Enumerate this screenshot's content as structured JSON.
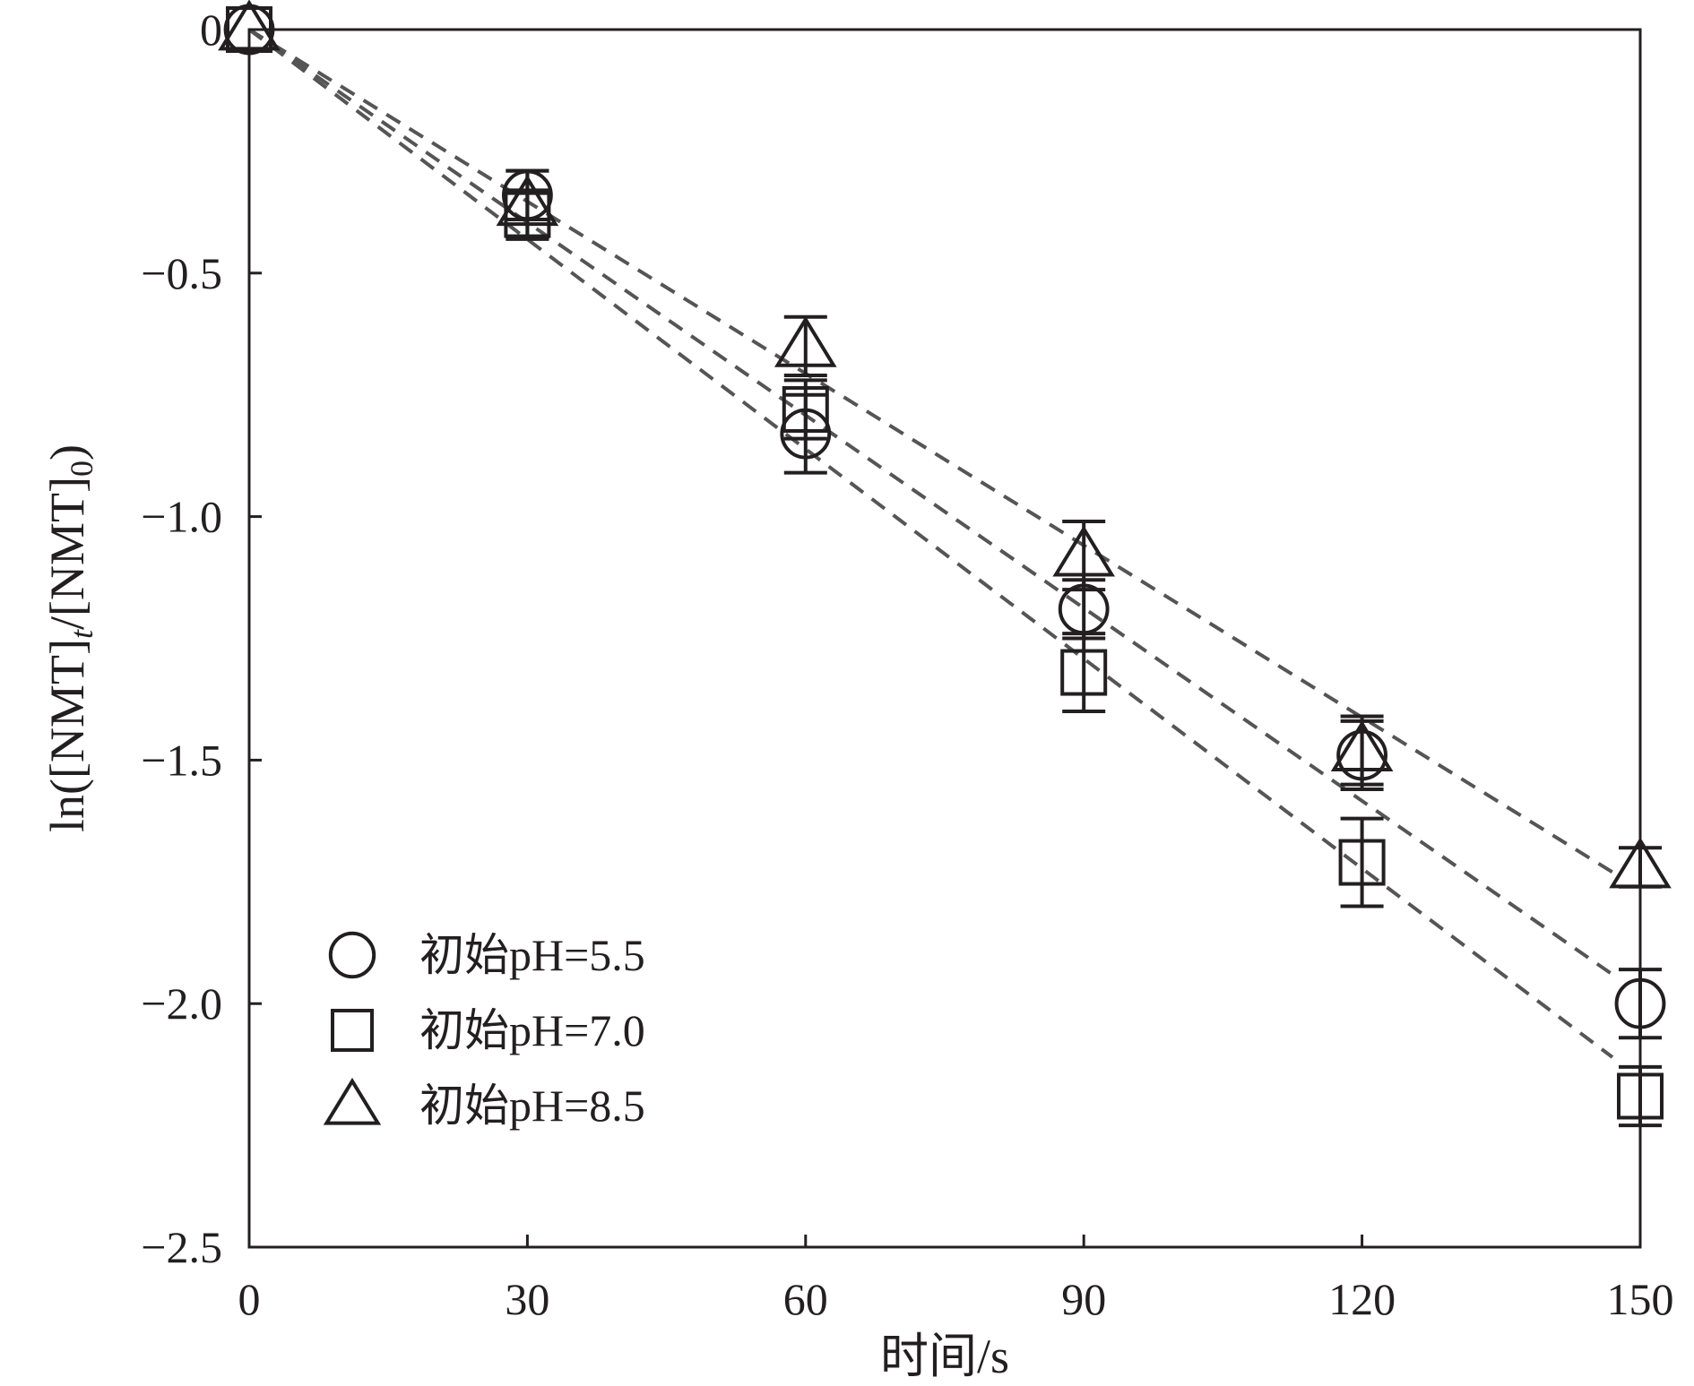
{
  "chart_data": {
    "type": "scatter",
    "xlabel": "时间/s",
    "ylabel": "ln([NMT]t/[NMT]0)",
    "ylabel_parts": {
      "prefix": "ln([NMT]",
      "sub1": "t",
      "middle": "/[NMT]",
      "sub2": "0",
      "suffix": ")"
    },
    "xlim": [
      0,
      150
    ],
    "ylim": [
      -2.5,
      0
    ],
    "xticks": [
      0,
      30,
      60,
      90,
      120,
      150
    ],
    "yticks": [
      0,
      -0.5,
      -1.0,
      -1.5,
      -2.0,
      -2.5
    ],
    "x_tick_labels": [
      "0",
      "30",
      "60",
      "90",
      "120",
      "150"
    ],
    "y_tick_labels": [
      "0",
      "−0.5",
      "−1.0",
      "−1.5",
      "−2.0",
      "−2.5"
    ],
    "grid": false,
    "legend_position": "bottom-left",
    "series": [
      {
        "name": "初始pH=5.5",
        "marker": "circle",
        "x": [
          0,
          30,
          60,
          90,
          120,
          150
        ],
        "y": [
          0,
          -0.34,
          -0.83,
          -1.19,
          -1.49,
          -2.0
        ],
        "error": [
          0,
          0.05,
          0.08,
          0.06,
          0.07,
          0.07
        ],
        "fit": {
          "x0": 0,
          "y0": 0,
          "x1": 147,
          "y1": -1.94
        }
      },
      {
        "name": "初始pH=7.0",
        "marker": "square",
        "x": [
          0,
          30,
          60,
          90,
          120,
          150
        ],
        "y": [
          0,
          -0.38,
          -0.78,
          -1.32,
          -1.71,
          -2.19
        ],
        "error": [
          0,
          0.05,
          0.06,
          0.08,
          0.09,
          0.06
        ],
        "fit": {
          "x0": 0,
          "y0": 0,
          "x1": 147,
          "y1": -2.11
        }
      },
      {
        "name": "初始pH=8.5",
        "marker": "triangle",
        "x": [
          0,
          30,
          60,
          90,
          120,
          150
        ],
        "y": [
          0,
          -0.36,
          -0.65,
          -1.08,
          -1.48,
          -1.72
        ],
        "error": [
          0,
          0.07,
          0.06,
          0.07,
          0.07,
          0.04
        ],
        "fit": {
          "x0": 0,
          "y0": 0,
          "x1": 147,
          "y1": -1.73
        }
      }
    ],
    "colors": {
      "ink": "#231f20",
      "fit_line": "#555555",
      "background": "#ffffff"
    }
  }
}
